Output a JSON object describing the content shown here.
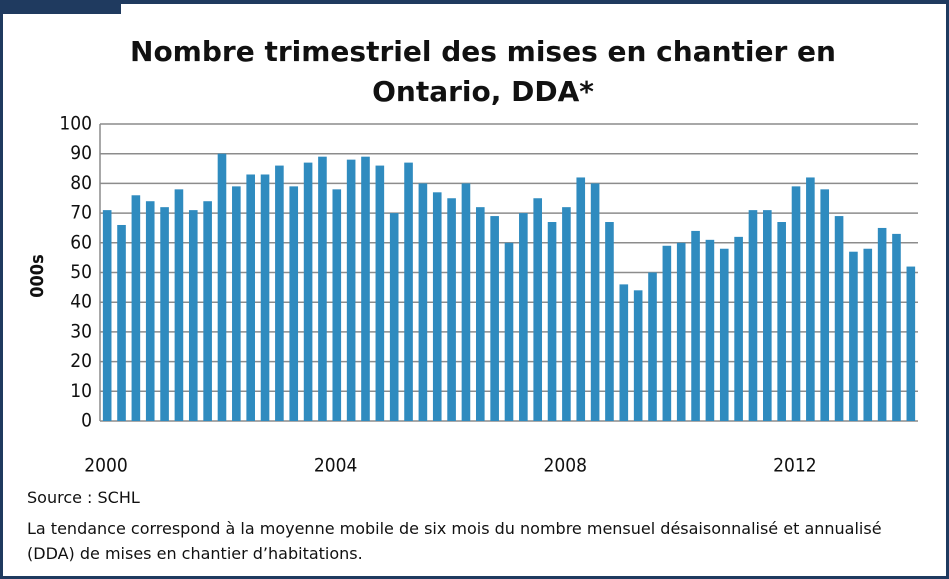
{
  "chart_data": {
    "type": "bar",
    "title": "Nombre trimestriel des mises en chantier en Ontario, DDA*",
    "y_label": "000s",
    "categories": [
      "2000",
      null,
      null,
      null,
      null,
      null,
      null,
      null,
      null,
      null,
      null,
      null,
      null,
      null,
      null,
      null,
      "2004",
      null,
      null,
      null,
      null,
      null,
      null,
      null,
      null,
      null,
      null,
      null,
      null,
      null,
      null,
      null,
      "2008",
      null,
      null,
      null,
      null,
      null,
      null,
      null,
      null,
      null,
      null,
      null,
      null,
      null,
      null,
      null,
      "2012",
      null,
      null,
      null,
      null,
      null,
      null,
      null,
      null
    ],
    "values": [
      71,
      66,
      76,
      74,
      72,
      78,
      71,
      74,
      90,
      79,
      83,
      83,
      86,
      79,
      87,
      89,
      78,
      88,
      89,
      86,
      70,
      87,
      80,
      77,
      75,
      80,
      72,
      69,
      60,
      70,
      75,
      67,
      72,
      82,
      80,
      67,
      46,
      44,
      50,
      59,
      60,
      64,
      61,
      58,
      62,
      71,
      71,
      67,
      79,
      82,
      78,
      69,
      57,
      58,
      65,
      63,
      52
    ],
    "color": "#2f8bbf",
    "ylim": [
      0,
      100
    ],
    "yticks": [
      0,
      10,
      20,
      30,
      40,
      50,
      60,
      70,
      80,
      90,
      100
    ],
    "grid": true,
    "source": "Source : SCHL",
    "note": "La tendance correspond à la moyenne mobile de six mois du nombre mensuel désaisonnalisé et annualisé (DDA) de mises en chantier d’habitations."
  }
}
